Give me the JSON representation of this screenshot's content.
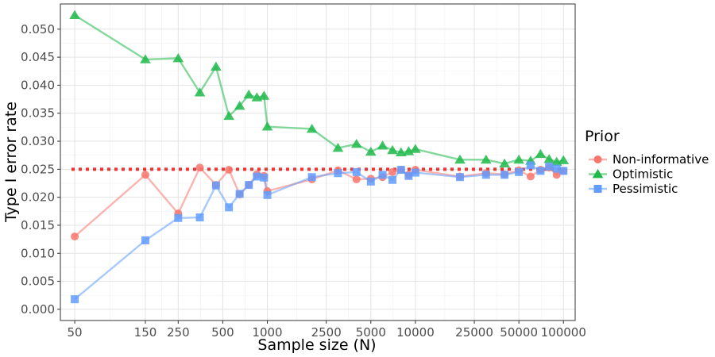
{
  "chart_data": {
    "type": "line",
    "xlabel": "Sample size (N)",
    "ylabel": "Type I error rate",
    "x_scale": "log",
    "xlim": [
      40,
      120000
    ],
    "ylim": [
      -0.002,
      0.0545
    ],
    "x_ticks": [
      50,
      150,
      250,
      500,
      1000,
      2500,
      5000,
      10000,
      25000,
      50000,
      100000
    ],
    "x_tick_labels": [
      "50",
      "150",
      "250",
      "500",
      "1000",
      "2500",
      "5000",
      "10000",
      "25000",
      "50000",
      "100000"
    ],
    "y_ticks": [
      0.0,
      0.005,
      0.01,
      0.015,
      0.02,
      0.025,
      0.03,
      0.035,
      0.04,
      0.045,
      0.05
    ],
    "y_tick_labels": [
      "0.000",
      "0.005",
      "0.010",
      "0.015",
      "0.020",
      "0.025",
      "0.030",
      "0.035",
      "0.040",
      "0.045",
      "0.050"
    ],
    "grid": true,
    "reference_line": {
      "y": 0.025,
      "style": "dotted",
      "color": "#ee3333"
    },
    "legend": {
      "title": "Prior",
      "placement": "right"
    },
    "x": [
      50,
      150,
      250,
      350,
      450,
      550,
      650,
      750,
      850,
      950,
      1000,
      2000,
      3000,
      4000,
      5000,
      6000,
      7000,
      8000,
      9000,
      10000,
      20000,
      30000,
      40000,
      50000,
      60000,
      70000,
      80000,
      90000,
      100000
    ],
    "series": [
      {
        "name": "Non-informative",
        "color": "#f8766d",
        "marker": "circle",
        "values": [
          0.013,
          0.024,
          0.0171,
          0.0253,
          0.0222,
          0.0249,
          0.0205,
          0.0222,
          0.0241,
          0.0238,
          0.0211,
          0.0232,
          0.0248,
          0.0232,
          0.0233,
          0.0236,
          0.0245,
          0.0249,
          0.024,
          0.0249,
          0.0237,
          0.0243,
          0.0241,
          0.0248,
          0.0237,
          0.0249,
          0.0253,
          0.024,
          0.0247
        ]
      },
      {
        "name": "Optimistic",
        "color": "#1fb84a",
        "marker": "triangle",
        "values": [
          0.0525,
          0.0446,
          0.0448,
          0.0387,
          0.0433,
          0.0345,
          0.0363,
          0.0383,
          0.0378,
          0.0381,
          0.0326,
          0.0322,
          0.0288,
          0.0295,
          0.0281,
          0.0292,
          0.0284,
          0.028,
          0.0282,
          0.0286,
          0.0267,
          0.0267,
          0.026,
          0.0267,
          0.0265,
          0.0277,
          0.0268,
          0.0263,
          0.0266
        ]
      },
      {
        "name": "Pessimistic",
        "color": "#619cff",
        "marker": "square",
        "values": [
          0.0018,
          0.0123,
          0.0163,
          0.0164,
          0.0221,
          0.0182,
          0.0206,
          0.0222,
          0.0237,
          0.0235,
          0.0204,
          0.0236,
          0.0243,
          0.0245,
          0.0228,
          0.024,
          0.0231,
          0.0249,
          0.0238,
          0.0244,
          0.0236,
          0.024,
          0.024,
          0.0245,
          0.0257,
          0.0247,
          0.0255,
          0.0251,
          0.0247
        ]
      }
    ]
  }
}
